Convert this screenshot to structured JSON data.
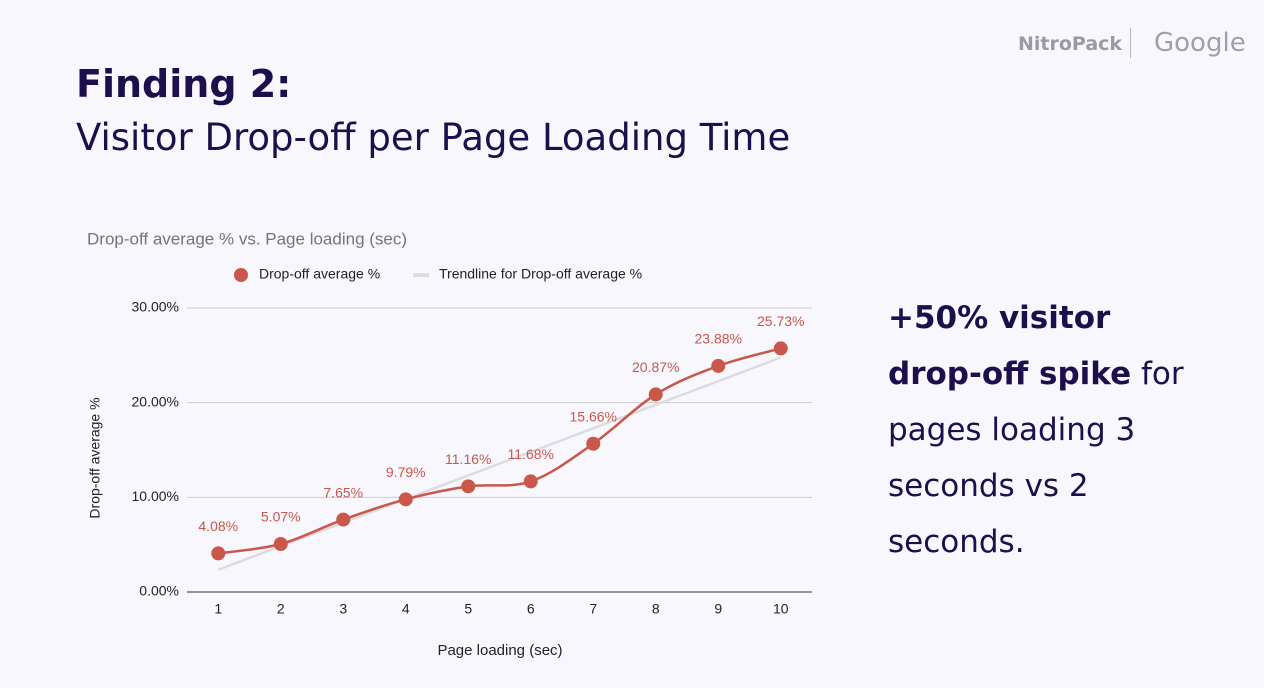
{
  "header": {
    "title": "Finding 2:",
    "subtitle": "Visitor Drop-off per Page Loading Time",
    "logos": [
      "NitroPack",
      "Google"
    ]
  },
  "chart_data": {
    "type": "line",
    "title": "Drop-off average % vs. Page loading (sec)",
    "x_label": "Page loading (sec)",
    "y_label": "Drop-off average %",
    "categories": [
      "1",
      "2",
      "3",
      "4",
      "5",
      "6",
      "7",
      "8",
      "9",
      "10"
    ],
    "series": [
      {
        "name": "Drop-off average %",
        "color": "#c9574a",
        "values": [
          4.08,
          5.07,
          7.65,
          9.79,
          11.16,
          11.68,
          15.66,
          20.87,
          23.88,
          25.73
        ],
        "value_labels": [
          "4.08%",
          "5.07%",
          "7.65%",
          "9.79%",
          "11.16%",
          "11.68%",
          "15.66%",
          "20.87%",
          "23.88%",
          "25.73%"
        ]
      },
      {
        "name": "Trendline for Drop-off average %",
        "color": "#dcdce0",
        "values": [
          2.36,
          4.84,
          7.33,
          9.82,
          12.31,
          14.8,
          17.29,
          19.78,
          22.27,
          24.76
        ]
      }
    ],
    "ylim": [
      0,
      30
    ],
    "yticks": [
      {
        "value": 0,
        "label": "0.00%"
      },
      {
        "value": 10,
        "label": "10.00%"
      },
      {
        "value": 20,
        "label": "20.00%"
      },
      {
        "value": 30,
        "label": "30.00%"
      }
    ],
    "grid": true,
    "legend": "top"
  },
  "side_text": {
    "bold": "+50% visitor drop-off spike",
    "rest": " for pages loading 3 seconds vs 2 seconds."
  }
}
